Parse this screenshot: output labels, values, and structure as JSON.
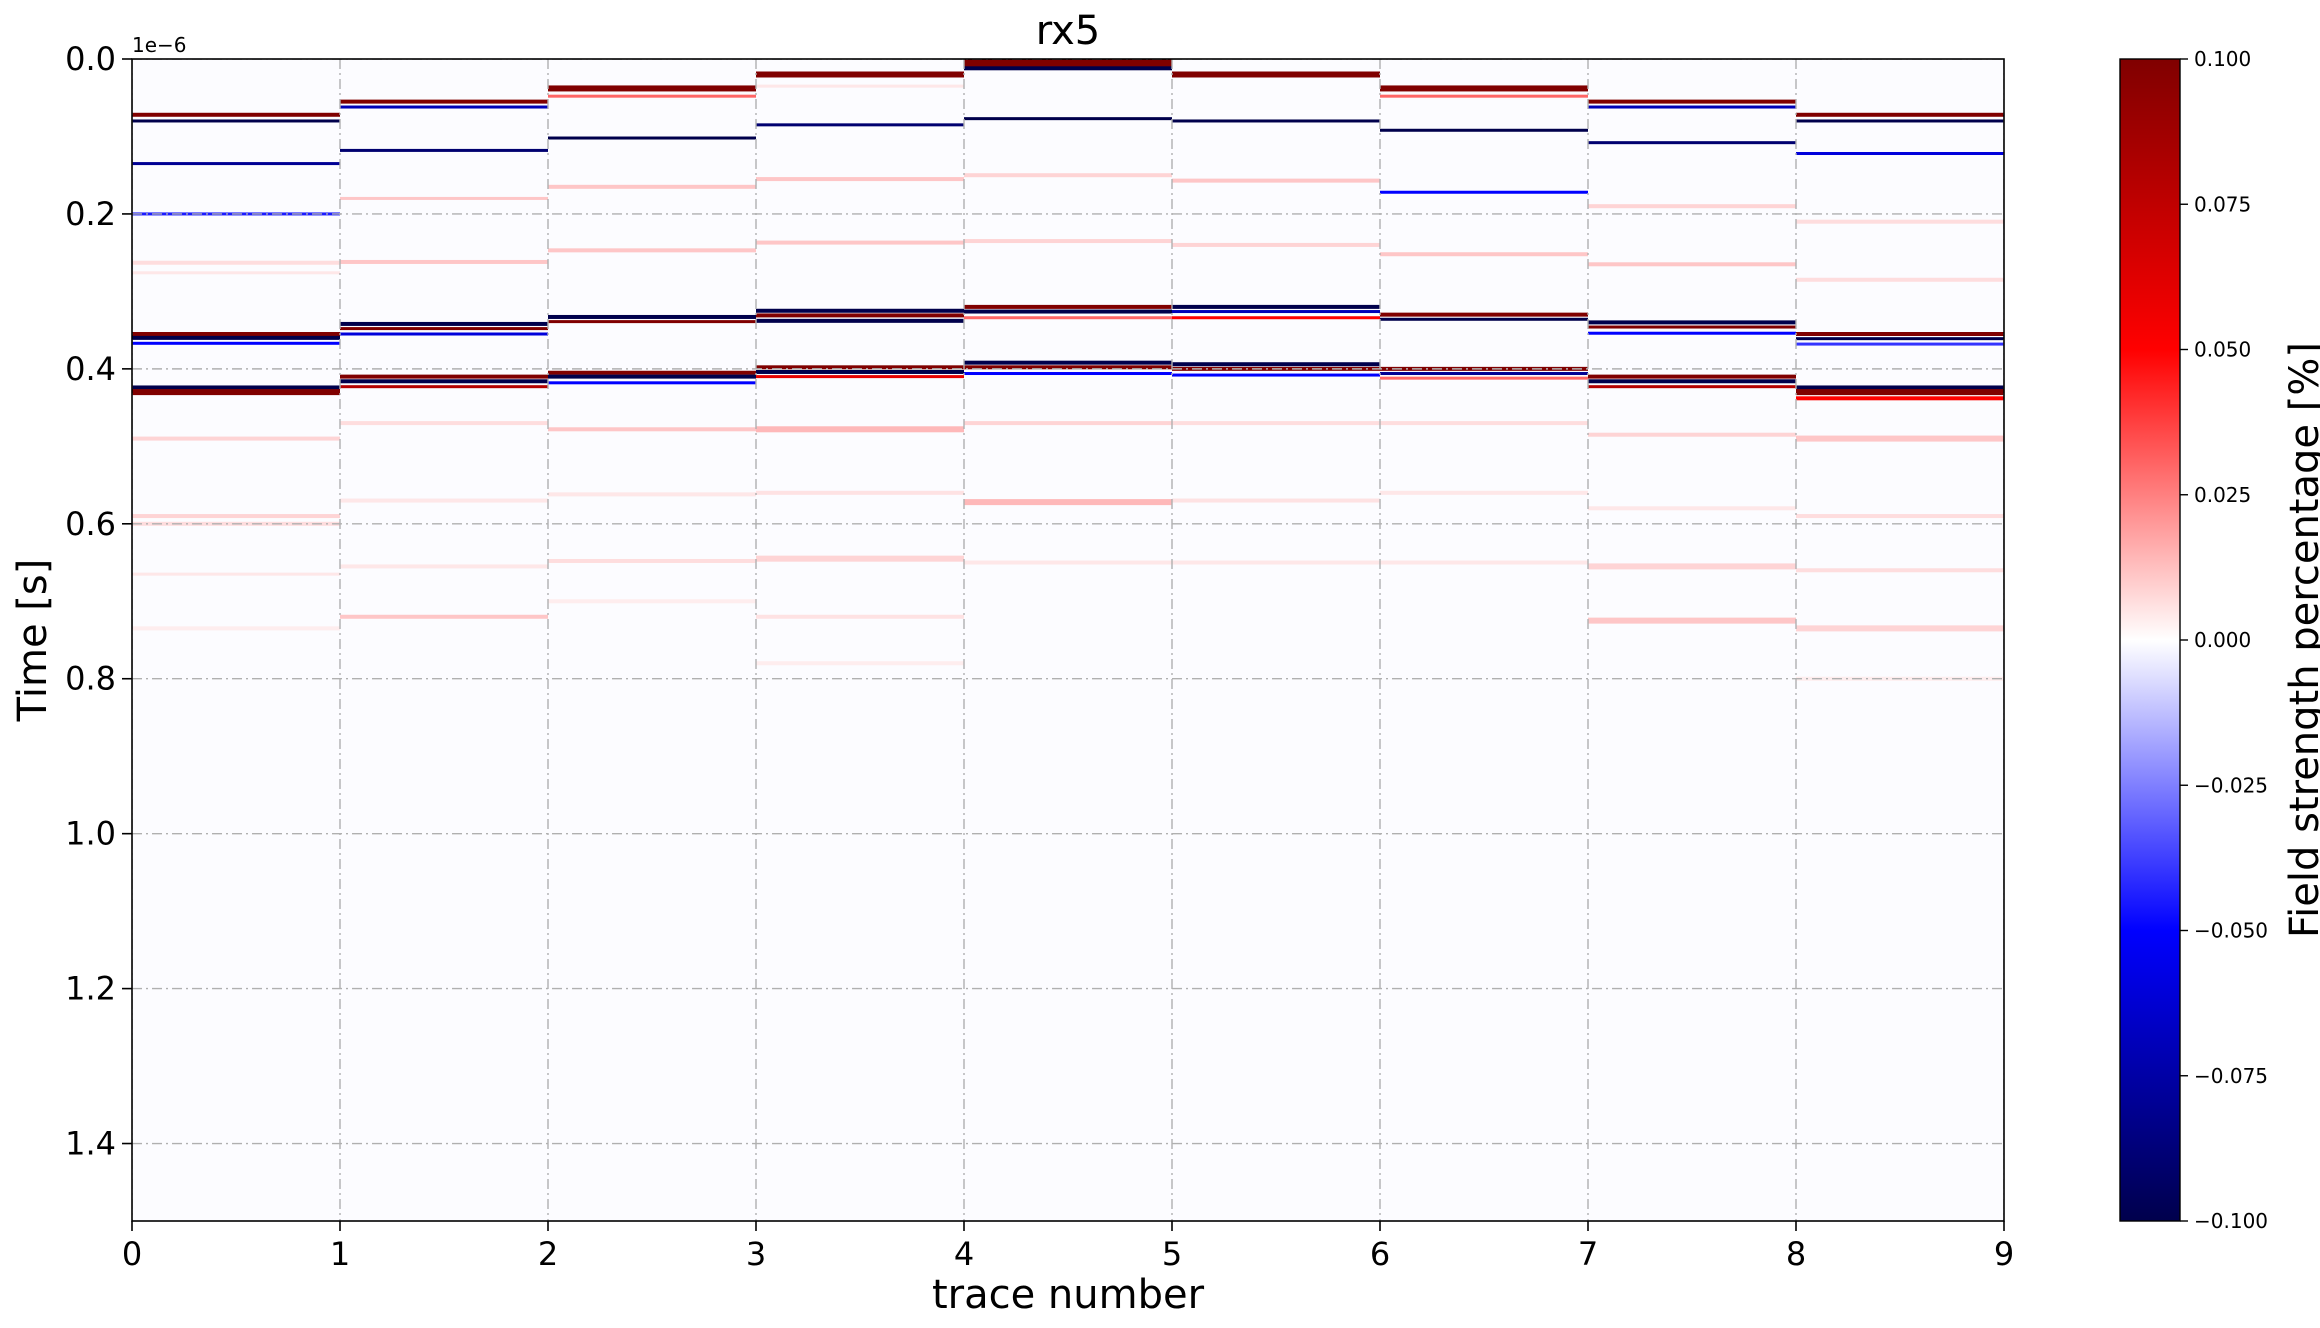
{
  "chart_data": {
    "type": "heatmap",
    "title": "rx5",
    "xlabel": "trace number",
    "ylabel": "Time [s]",
    "y_offset_label": "1e−6",
    "xlim": [
      0,
      9
    ],
    "ylim": [
      1.5e-06,
      0
    ],
    "y_scale_factor": 1e-06,
    "x_ticks": [
      0,
      1,
      2,
      3,
      4,
      5,
      6,
      7,
      8,
      9
    ],
    "x_tick_labels": [
      "0",
      "1",
      "2",
      "3",
      "4",
      "5",
      "6",
      "7",
      "8",
      "9"
    ],
    "y_ticks": [
      0,
      2e-07,
      4e-07,
      6e-07,
      8e-07,
      1e-06,
      1.2e-06,
      1.4e-06
    ],
    "y_tick_labels": [
      "0.0",
      "0.2",
      "0.4",
      "0.6",
      "0.8",
      "1.0",
      "1.2",
      "1.4"
    ],
    "grid": true,
    "colorbar": {
      "label": "Field strength percentage [%]",
      "colormap": "seismic",
      "vmin": -0.1,
      "vmax": 0.1,
      "ticks": [
        0.1,
        0.075,
        0.05,
        0.025,
        0.0,
        -0.025,
        -0.05,
        -0.075,
        -0.1
      ],
      "tick_labels": [
        "0.100",
        "0.075",
        "0.050",
        "0.025",
        "0.000",
        "−0.025",
        "−0.050",
        "−0.075",
        "−0.100"
      ]
    },
    "traces": [
      {
        "trace": 0,
        "x": [
          0,
          1
        ],
        "reflections": [
          {
            "t": 7.2e-08,
            "v": 0.1,
            "w": 2
          },
          {
            "t": 8e-08,
            "v": -0.1,
            "w": 1.5
          },
          {
            "t": 1.35e-07,
            "v": -0.08,
            "w": 1.5
          },
          {
            "t": 2e-07,
            "v": -0.045,
            "w": 1.5
          },
          {
            "t": 2.63e-07,
            "v": 0.012,
            "w": 2
          },
          {
            "t": 2.76e-07,
            "v": 0.008,
            "w": 1.5
          },
          {
            "t": 3.55e-07,
            "v": 0.1,
            "w": 2
          },
          {
            "t": 3.6e-07,
            "v": -0.1,
            "w": 2
          },
          {
            "t": 3.67e-07,
            "v": -0.05,
            "w": 1.5
          },
          {
            "t": 4.24e-07,
            "v": -0.1,
            "w": 2
          },
          {
            "t": 4.3e-07,
            "v": 0.1,
            "w": 3
          },
          {
            "t": 4.9e-07,
            "v": 0.015,
            "w": 2
          },
          {
            "t": 5.9e-07,
            "v": 0.015,
            "w": 2
          },
          {
            "t": 6e-07,
            "v": 0.012,
            "w": 2
          },
          {
            "t": 6.65e-07,
            "v": 0.008,
            "w": 1.5
          },
          {
            "t": 7.35e-07,
            "v": 0.006,
            "w": 2
          }
        ]
      },
      {
        "trace": 1,
        "x": [
          1,
          2
        ],
        "reflections": [
          {
            "t": 5.5e-08,
            "v": 0.1,
            "w": 2
          },
          {
            "t": 6.2e-08,
            "v": -0.07,
            "w": 1.5
          },
          {
            "t": 1.18e-07,
            "v": -0.09,
            "w": 1.5
          },
          {
            "t": 1.8e-07,
            "v": 0.02,
            "w": 1.5
          },
          {
            "t": 2.62e-07,
            "v": 0.02,
            "w": 2
          },
          {
            "t": 3.42e-07,
            "v": -0.1,
            "w": 2
          },
          {
            "t": 3.48e-07,
            "v": 0.1,
            "w": 1.5
          },
          {
            "t": 3.55e-07,
            "v": -0.06,
            "w": 1.5
          },
          {
            "t": 4.1e-07,
            "v": 0.1,
            "w": 2
          },
          {
            "t": 4.16e-07,
            "v": -0.1,
            "w": 2
          },
          {
            "t": 4.23e-07,
            "v": 0.08,
            "w": 1.5
          },
          {
            "t": 4.7e-07,
            "v": 0.012,
            "w": 2
          },
          {
            "t": 5.7e-07,
            "v": 0.008,
            "w": 2
          },
          {
            "t": 6.55e-07,
            "v": 0.008,
            "w": 2
          },
          {
            "t": 7.2e-07,
            "v": 0.02,
            "w": 2
          }
        ]
      },
      {
        "trace": 2,
        "x": [
          2,
          3
        ],
        "reflections": [
          {
            "t": 3.8e-08,
            "v": 0.1,
            "w": 3
          },
          {
            "t": 4.8e-08,
            "v": 0.03,
            "w": 1.5
          },
          {
            "t": 1.02e-07,
            "v": -0.1,
            "w": 1.5
          },
          {
            "t": 1.65e-07,
            "v": 0.02,
            "w": 2
          },
          {
            "t": 2.47e-07,
            "v": 0.02,
            "w": 2
          },
          {
            "t": 3.33e-07,
            "v": -0.1,
            "w": 2
          },
          {
            "t": 3.39e-07,
            "v": 0.1,
            "w": 1.5
          },
          {
            "t": 4.05e-07,
            "v": 0.1,
            "w": 2
          },
          {
            "t": 4.1e-07,
            "v": -0.1,
            "w": 2
          },
          {
            "t": 4.18e-07,
            "v": -0.05,
            "w": 1.5
          },
          {
            "t": 4.78e-07,
            "v": 0.02,
            "w": 2
          },
          {
            "t": 5.62e-07,
            "v": 0.008,
            "w": 2
          },
          {
            "t": 6.48e-07,
            "v": 0.012,
            "w": 2
          },
          {
            "t": 7e-07,
            "v": 0.006,
            "w": 2
          }
        ]
      },
      {
        "trace": 3,
        "x": [
          3,
          4
        ],
        "reflections": [
          {
            "t": 2e-08,
            "v": 0.1,
            "w": 3
          },
          {
            "t": 3.5e-08,
            "v": 0.008,
            "w": 1.5
          },
          {
            "t": 8.5e-08,
            "v": -0.09,
            "w": 1.5
          },
          {
            "t": 1.55e-07,
            "v": 0.02,
            "w": 2
          },
          {
            "t": 2.37e-07,
            "v": 0.02,
            "w": 2
          },
          {
            "t": 3.25e-07,
            "v": -0.1,
            "w": 2
          },
          {
            "t": 3.31e-07,
            "v": 0.1,
            "w": 2
          },
          {
            "t": 3.38e-07,
            "v": -0.1,
            "w": 2
          },
          {
            "t": 3.98e-07,
            "v": 0.1,
            "w": 2
          },
          {
            "t": 4.04e-07,
            "v": -0.1,
            "w": 2
          },
          {
            "t": 4.1e-07,
            "v": 0.06,
            "w": 1.5
          },
          {
            "t": 4.78e-07,
            "v": 0.025,
            "w": 3
          },
          {
            "t": 5.6e-07,
            "v": 0.01,
            "w": 2
          },
          {
            "t": 6.45e-07,
            "v": 0.015,
            "w": 3
          },
          {
            "t": 7.2e-07,
            "v": 0.01,
            "w": 2
          },
          {
            "t": 7.8e-07,
            "v": 0.006,
            "w": 2
          }
        ]
      },
      {
        "trace": 4,
        "x": [
          4,
          5
        ],
        "reflections": [
          {
            "t": 2e-09,
            "v": 0.1,
            "w": 6
          },
          {
            "t": 1.2e-08,
            "v": -0.1,
            "w": 2
          },
          {
            "t": 7.7e-08,
            "v": -0.1,
            "w": 1.5
          },
          {
            "t": 1.5e-07,
            "v": 0.015,
            "w": 2
          },
          {
            "t": 2.35e-07,
            "v": 0.015,
            "w": 2
          },
          {
            "t": 3.2e-07,
            "v": 0.1,
            "w": 2
          },
          {
            "t": 3.26e-07,
            "v": -0.1,
            "w": 2
          },
          {
            "t": 3.34e-07,
            "v": 0.03,
            "w": 1.5
          },
          {
            "t": 3.92e-07,
            "v": -0.1,
            "w": 2
          },
          {
            "t": 3.98e-07,
            "v": 0.1,
            "w": 2
          },
          {
            "t": 4.06e-07,
            "v": -0.05,
            "w": 1.5
          },
          {
            "t": 4.7e-07,
            "v": 0.015,
            "w": 2
          },
          {
            "t": 5.72e-07,
            "v": 0.025,
            "w": 3
          },
          {
            "t": 6.5e-07,
            "v": 0.008,
            "w": 2
          }
        ]
      },
      {
        "trace": 5,
        "x": [
          5,
          6
        ],
        "reflections": [
          {
            "t": 2e-08,
            "v": 0.1,
            "w": 3
          },
          {
            "t": 8e-08,
            "v": -0.1,
            "w": 1.5
          },
          {
            "t": 1.57e-07,
            "v": 0.02,
            "w": 2
          },
          {
            "t": 2.4e-07,
            "v": 0.015,
            "w": 2
          },
          {
            "t": 3.2e-07,
            "v": -0.1,
            "w": 2
          },
          {
            "t": 3.26e-07,
            "v": -0.07,
            "w": 1.5
          },
          {
            "t": 3.34e-07,
            "v": 0.05,
            "w": 1.5
          },
          {
            "t": 3.94e-07,
            "v": -0.1,
            "w": 2
          },
          {
            "t": 4e-07,
            "v": 0.1,
            "w": 2
          },
          {
            "t": 4.08e-07,
            "v": -0.05,
            "w": 1.5
          },
          {
            "t": 4.7e-07,
            "v": 0.012,
            "w": 2
          },
          {
            "t": 5.7e-07,
            "v": 0.01,
            "w": 2
          },
          {
            "t": 6.5e-07,
            "v": 0.008,
            "w": 2
          }
        ]
      },
      {
        "trace": 6,
        "x": [
          6,
          7
        ],
        "reflections": [
          {
            "t": 3.8e-08,
            "v": 0.1,
            "w": 3
          },
          {
            "t": 4.8e-08,
            "v": 0.03,
            "w": 1.5
          },
          {
            "t": 9.2e-08,
            "v": -0.1,
            "w": 1.5
          },
          {
            "t": 1.72e-07,
            "v": -0.05,
            "w": 1.5
          },
          {
            "t": 2.52e-07,
            "v": 0.02,
            "w": 2
          },
          {
            "t": 3.3e-07,
            "v": 0.1,
            "w": 2
          },
          {
            "t": 3.36e-07,
            "v": -0.1,
            "w": 1.5
          },
          {
            "t": 4e-07,
            "v": 0.1,
            "w": 2
          },
          {
            "t": 4.06e-07,
            "v": -0.08,
            "w": 1.5
          },
          {
            "t": 4.12e-07,
            "v": 0.03,
            "w": 1.5
          },
          {
            "t": 4.7e-07,
            "v": 0.012,
            "w": 2
          },
          {
            "t": 5.6e-07,
            "v": 0.008,
            "w": 2
          },
          {
            "t": 6.5e-07,
            "v": 0.008,
            "w": 2
          }
        ]
      },
      {
        "trace": 7,
        "x": [
          7,
          8
        ],
        "reflections": [
          {
            "t": 5.5e-08,
            "v": 0.1,
            "w": 2
          },
          {
            "t": 6.2e-08,
            "v": -0.07,
            "w": 1.5
          },
          {
            "t": 1.08e-07,
            "v": -0.09,
            "w": 1.5
          },
          {
            "t": 1.9e-07,
            "v": 0.015,
            "w": 2
          },
          {
            "t": 2.65e-07,
            "v": 0.02,
            "w": 2
          },
          {
            "t": 3.4e-07,
            "v": -0.1,
            "w": 2
          },
          {
            "t": 3.46e-07,
            "v": 0.1,
            "w": 1.5
          },
          {
            "t": 3.54e-07,
            "v": -0.05,
            "w": 1.5
          },
          {
            "t": 4.1e-07,
            "v": 0.1,
            "w": 2
          },
          {
            "t": 4.16e-07,
            "v": -0.1,
            "w": 2
          },
          {
            "t": 4.23e-07,
            "v": 0.08,
            "w": 1.5
          },
          {
            "t": 4.85e-07,
            "v": 0.015,
            "w": 2
          },
          {
            "t": 5.8e-07,
            "v": 0.008,
            "w": 2
          },
          {
            "t": 6.55e-07,
            "v": 0.015,
            "w": 3
          },
          {
            "t": 7.25e-07,
            "v": 0.02,
            "w": 3
          }
        ]
      },
      {
        "trace": 8,
        "x": [
          8,
          9
        ],
        "reflections": [
          {
            "t": 7.2e-08,
            "v": 0.1,
            "w": 2
          },
          {
            "t": 8e-08,
            "v": -0.1,
            "w": 1.5
          },
          {
            "t": 1.22e-07,
            "v": -0.06,
            "w": 1.5
          },
          {
            "t": 2.1e-07,
            "v": 0.012,
            "w": 2
          },
          {
            "t": 2.85e-07,
            "v": 0.012,
            "w": 2
          },
          {
            "t": 3.55e-07,
            "v": 0.1,
            "w": 2
          },
          {
            "t": 3.61e-07,
            "v": -0.1,
            "w": 1.5
          },
          {
            "t": 3.68e-07,
            "v": -0.04,
            "w": 1.5
          },
          {
            "t": 4.24e-07,
            "v": -0.1,
            "w": 2
          },
          {
            "t": 4.3e-07,
            "v": 0.1,
            "w": 3
          },
          {
            "t": 4.38e-07,
            "v": 0.05,
            "w": 2
          },
          {
            "t": 4.9e-07,
            "v": 0.02,
            "w": 3
          },
          {
            "t": 5.9e-07,
            "v": 0.012,
            "w": 2
          },
          {
            "t": 6.6e-07,
            "v": 0.012,
            "w": 2
          },
          {
            "t": 7.35e-07,
            "v": 0.015,
            "w": 3
          },
          {
            "t": 8e-07,
            "v": 0.006,
            "w": 2
          }
        ]
      }
    ]
  }
}
